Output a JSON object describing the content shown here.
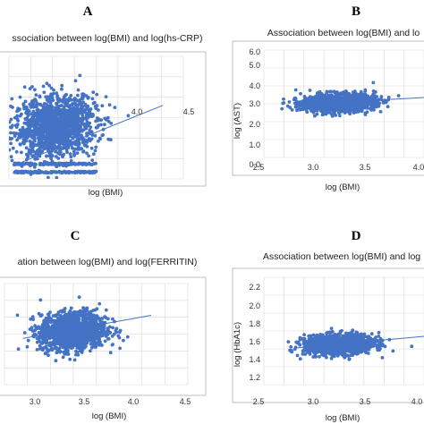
{
  "panels": [
    {
      "letter": "A",
      "title": "ssociation between log(BMI) and log(hs-CRP)",
      "xlabel": "log (BMI)",
      "ylabel": "",
      "x_ticks": [
        "4.0",
        "4.5"
      ],
      "y_ticks": []
    },
    {
      "letter": "B",
      "title": "Association between log(BMI) and lo",
      "xlabel": "log (BMI)",
      "ylabel": "log (AST)",
      "x_ticks": [
        "2.5",
        "3.0",
        "3.5",
        "4.0"
      ],
      "y_ticks": [
        "0.0",
        "1.0",
        "2.0",
        "3.0",
        "4.0",
        "5.0",
        "6.0"
      ]
    },
    {
      "letter": "C",
      "title": "ation between log(BMI) and log(FERRITIN)",
      "xlabel": "log (BMI)",
      "ylabel": "",
      "x_ticks": [
        "3.0",
        "3.5",
        "4.0",
        "4.5"
      ],
      "y_ticks": []
    },
    {
      "letter": "D",
      "title": "Association between log(BMI) and log",
      "xlabel": "log (BMI)",
      "ylabel": "log (HbA1c)",
      "x_ticks": [
        "2.5",
        "3.0",
        "3.5",
        "4.0"
      ],
      "y_ticks": [
        "1.2",
        "1.4",
        "1.6",
        "1.8",
        "2.0",
        "2.2"
      ]
    }
  ],
  "colors": {
    "points": "#4472c4",
    "trend": "#4472c4",
    "grid": "#d9d9d9",
    "border": "#bfbfbf"
  },
  "chart_data": [
    {
      "type": "scatter",
      "panel": "A",
      "title": "ssociation between log(BMI) and log(hs-CRP)",
      "xlabel": "log (BMI)",
      "ylabel": "",
      "xlim": [
        2.8,
        4.5
      ],
      "ylim": [
        -2,
        7
      ],
      "grid": true,
      "cloud": {
        "center": [
          3.25,
          1.8
        ],
        "spread": [
          0.2,
          1.1
        ],
        "n": 1400,
        "floor_rows": [
          -0.9,
          -1.5
        ]
      },
      "trend": {
        "x": [
          2.85,
          4.3
        ],
        "y": [
          -1.0,
          3.4
        ]
      }
    },
    {
      "type": "scatter",
      "panel": "B",
      "title": "Association between log(BMI) and lo",
      "xlabel": "log (BMI)",
      "ylabel": "log (AST)",
      "xlim": [
        2.5,
        4.0
      ],
      "ylim": [
        0,
        6
      ],
      "grid": true,
      "cloud": {
        "center": [
          3.2,
          3.05
        ],
        "spread": [
          0.17,
          0.25
        ],
        "n": 1300
      },
      "trend": {
        "x": [
          2.8,
          4.0
        ],
        "y": [
          2.95,
          3.35
        ]
      }
    },
    {
      "type": "scatter",
      "panel": "C",
      "title": "ation between log(BMI) and log(FERRITIN)",
      "xlabel": "log (BMI)",
      "ylabel": "",
      "xlim": [
        2.5,
        4.5
      ],
      "ylim": [
        0,
        7
      ],
      "grid": true,
      "cloud": {
        "center": [
          3.25,
          3.7
        ],
        "spread": [
          0.18,
          0.65
        ],
        "n": 1400
      },
      "trend": {
        "x": [
          2.7,
          4.1
        ],
        "y": [
          3.2,
          4.8
        ]
      }
    },
    {
      "type": "scatter",
      "panel": "D",
      "title": "Association between log(BMI) and log",
      "xlabel": "log (BMI)",
      "ylabel": "log (HbA1c)",
      "xlim": [
        2.5,
        4.0
      ],
      "ylim": [
        1.2,
        2.4
      ],
      "grid": true,
      "cloud": {
        "center": [
          3.2,
          1.65
        ],
        "spread": [
          0.16,
          0.055
        ],
        "n": 1200
      },
      "trend": {
        "x": [
          2.8,
          4.0
        ],
        "y": [
          1.61,
          1.74
        ]
      }
    }
  ]
}
